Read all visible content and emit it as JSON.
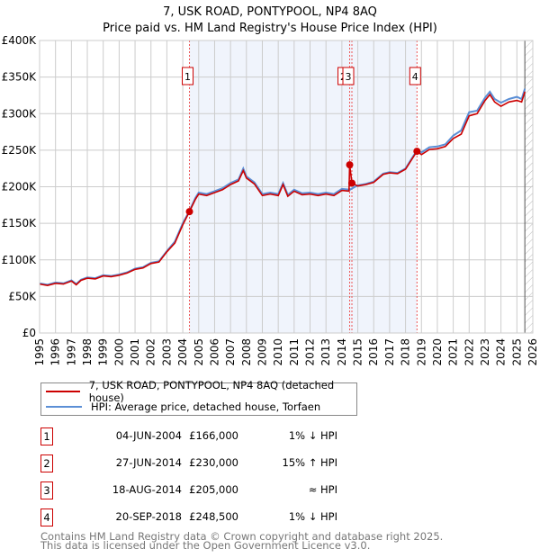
{
  "title": "7, USK ROAD, PONTYPOOL, NP4 8AQ",
  "subtitle": "Price paid vs. HM Land Registry's House Price Index (HPI)",
  "chart_data": {
    "type": "line",
    "xlim": [
      1995,
      2026
    ],
    "ylim": [
      0,
      400000
    ],
    "x_ticks": [
      "1995",
      "1996",
      "1997",
      "1998",
      "1999",
      "2000",
      "2001",
      "2002",
      "2003",
      "2004",
      "2005",
      "2006",
      "2007",
      "2008",
      "2009",
      "2010",
      "2011",
      "2012",
      "2013",
      "2014",
      "2015",
      "2016",
      "2017",
      "2018",
      "2019",
      "2020",
      "2021",
      "2022",
      "2023",
      "2024",
      "2025",
      "2026"
    ],
    "y_ticks": [
      {
        "v": 0,
        "label": "£0"
      },
      {
        "v": 50000,
        "label": "£50K"
      },
      {
        "v": 100000,
        "label": "£100K"
      },
      {
        "v": 150000,
        "label": "£150K"
      },
      {
        "v": 200000,
        "label": "£200K"
      },
      {
        "v": 250000,
        "label": "£250K"
      },
      {
        "v": 300000,
        "label": "£300K"
      },
      {
        "v": 350000,
        "label": "£350K"
      },
      {
        "v": 400000,
        "label": "£400K"
      }
    ],
    "grid": true,
    "shaded_range": [
      2004.42,
      2018.72
    ],
    "forecast_hatch_from": 2025.5,
    "series": [
      {
        "name": "HPI: Average price, detached house, Torfaen",
        "color": "#5b8fd6",
        "x": [
          1995,
          1995.5,
          1996,
          1996.5,
          1997,
          1997.3,
          1997.6,
          1998,
          1998.5,
          1999,
          1999.5,
          2000,
          2000.5,
          2001,
          2001.5,
          2002,
          2002.5,
          2003,
          2003.5,
          2004,
          2004.42,
          2004.8,
          2005,
          2005.5,
          2006,
          2006.5,
          2007,
          2007.5,
          2007.8,
          2008,
          2008.5,
          2009,
          2009.5,
          2010,
          2010.3,
          2010.6,
          2011,
          2011.5,
          2012,
          2012.5,
          2013,
          2013.5,
          2014,
          2014.5,
          2015,
          2015.5,
          2016,
          2016.6,
          2017,
          2017.5,
          2018,
          2018.72,
          2019,
          2019.5,
          2020,
          2020.5,
          2021,
          2021.5,
          2022,
          2022.5,
          2023,
          2023.3,
          2023.6,
          2024,
          2024.5,
          2025,
          2025.3,
          2025.5
        ],
        "y": [
          68000,
          66000,
          69000,
          68000,
          72000,
          67000,
          73000,
          76000,
          75000,
          79000,
          78000,
          80000,
          83000,
          88000,
          90000,
          96000,
          98000,
          112000,
          125000,
          150000,
          167000,
          185000,
          192000,
          190000,
          194000,
          198000,
          205000,
          210000,
          225000,
          214000,
          206000,
          190000,
          192000,
          190000,
          205000,
          189000,
          196000,
          191000,
          192000,
          190000,
          192000,
          190000,
          197000,
          196000,
          202000,
          204000,
          207000,
          218000,
          220000,
          219000,
          225000,
          250000,
          247000,
          254000,
          255000,
          258000,
          270000,
          277000,
          302000,
          304000,
          322000,
          330000,
          320000,
          315000,
          320000,
          323000,
          320000,
          334000
        ]
      },
      {
        "name": "7, USK ROAD, PONTYPOOL, NP4 8AQ (detached house)",
        "color": "#cc0000",
        "x": [
          1995,
          1995.5,
          1996,
          1996.5,
          1997,
          1997.3,
          1997.6,
          1998,
          1998.5,
          1999,
          1999.5,
          2000,
          2000.5,
          2001,
          2001.5,
          2002,
          2002.5,
          2003,
          2003.5,
          2004,
          2004.42,
          2004.8,
          2005,
          2005.5,
          2006,
          2006.5,
          2007,
          2007.5,
          2007.8,
          2008,
          2008.5,
          2009,
          2009.5,
          2010,
          2010.3,
          2010.6,
          2011,
          2011.5,
          2012,
          2012.5,
          2013,
          2013.5,
          2014,
          2014.45,
          2014.49,
          2014.63,
          2015,
          2015.5,
          2016,
          2016.6,
          2017,
          2017.5,
          2018,
          2018.72,
          2019,
          2019.5,
          2020,
          2020.5,
          2021,
          2021.5,
          2022,
          2022.5,
          2023,
          2023.3,
          2023.6,
          2024,
          2024.5,
          2025,
          2025.3,
          2025.5
        ],
        "y": [
          67000,
          65000,
          68000,
          67000,
          71000,
          66000,
          72000,
          75000,
          74000,
          78000,
          77000,
          79000,
          82000,
          87000,
          89000,
          95000,
          97000,
          111000,
          123000,
          148000,
          166000,
          183000,
          190000,
          188000,
          192000,
          196000,
          203000,
          208000,
          222000,
          212000,
          204000,
          188000,
          190000,
          188000,
          203000,
          187000,
          194000,
          189000,
          190000,
          188000,
          190000,
          188000,
          195000,
          194000,
          230000,
          205000,
          201000,
          203000,
          206000,
          217000,
          219000,
          218000,
          224000,
          248500,
          244000,
          251000,
          252000,
          255000,
          266000,
          272000,
          297000,
          300000,
          318000,
          326000,
          316000,
          310000,
          316000,
          318000,
          316000,
          330000
        ]
      }
    ],
    "sales": [
      {
        "n": "1",
        "x": 2004.42,
        "y": 166000
      },
      {
        "n": "2",
        "x": 2014.49,
        "y": 230000
      },
      {
        "n": "3",
        "x": 2014.63,
        "y": 205000
      },
      {
        "n": "4",
        "x": 2018.72,
        "y": 248500
      }
    ]
  },
  "legend": [
    {
      "label": "7, USK ROAD, PONTYPOOL, NP4 8AQ (detached house)",
      "color": "#cc0000"
    },
    {
      "label": "HPI: Average price, detached house, Torfaen",
      "color": "#5b8fd6"
    }
  ],
  "table": [
    {
      "n": "1",
      "date": "04-JUN-2004",
      "price": "£166,000",
      "hpi": "1% ↓ HPI"
    },
    {
      "n": "2",
      "date": "27-JUN-2014",
      "price": "£230,000",
      "hpi": "15% ↑ HPI"
    },
    {
      "n": "3",
      "date": "18-AUG-2014",
      "price": "£205,000",
      "hpi": "≈ HPI"
    },
    {
      "n": "4",
      "date": "20-SEP-2018",
      "price": "£248,500",
      "hpi": "1% ↓ HPI"
    }
  ],
  "footer": [
    "Contains HM Land Registry data © Crown copyright and database right 2025.",
    "This data is licensed under the Open Government Licence v3.0."
  ]
}
